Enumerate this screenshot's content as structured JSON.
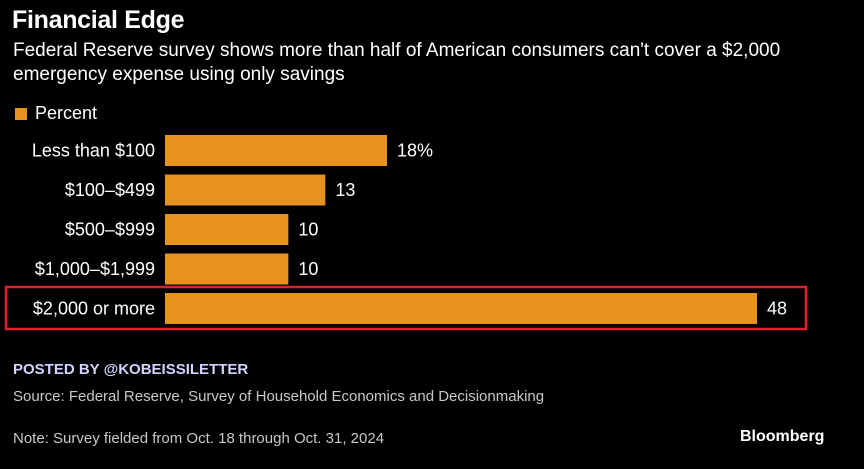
{
  "header": {
    "title": "Financial Edge",
    "subtitle": "Federal Reserve survey shows more than half of American consumers can't cover a $2,000 emergency expense using only savings"
  },
  "legend": {
    "label": "Percent"
  },
  "colors": {
    "bar": "#E8921E",
    "highlight": "#E0202A",
    "background": "#000000"
  },
  "chart_data": {
    "type": "bar",
    "orientation": "horizontal",
    "title": "Financial Edge",
    "series": [
      {
        "name": "Percent",
        "values": [
          18,
          13,
          10,
          10,
          48
        ]
      }
    ],
    "categories": [
      "Less than $100",
      "$100–$499",
      "$500–$999",
      "$1,000–$1,999",
      "$2,000 or more"
    ],
    "values": [
      18,
      13,
      10,
      10,
      48
    ],
    "value_labels": [
      "18%",
      "13",
      "10",
      "10",
      "48"
    ],
    "xlim": [
      0,
      48
    ],
    "highlighted_category": "$2,000 or more",
    "legend_position": "top-left"
  },
  "footer": {
    "posted_by": "POSTED BY @KOBEISSILETTER",
    "source": "Source: Federal Reserve, Survey of Household Economics and Decisionmaking",
    "note": "Note: Survey fielded from Oct. 18 through Oct. 31, 2024",
    "brand": "Bloomberg"
  }
}
